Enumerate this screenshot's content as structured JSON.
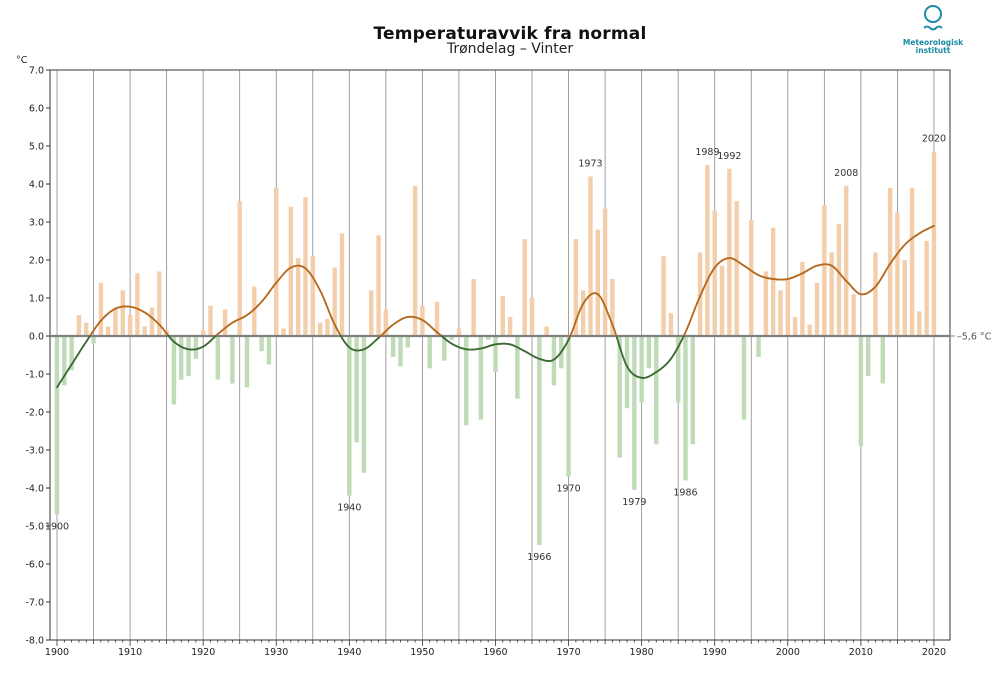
{
  "logo": {
    "text": "Meteorologisk\ninstitutt"
  },
  "chart_data": {
    "type": "bar",
    "title": "Temperaturavvik fra normal",
    "subtitle": "Trøndelag – Vinter",
    "ylabel": "°C",
    "ylim": [
      -8,
      7
    ],
    "yticks": [
      7,
      6,
      5,
      4,
      3,
      2,
      1,
      0,
      -1,
      -2,
      -3,
      -4,
      -5,
      -6,
      -7,
      -8
    ],
    "ytick_labels": [
      "7.0",
      "6.0",
      "5.0",
      "4.0",
      "3.0",
      "2.0",
      "1.0",
      "0.0",
      "-1.0",
      "-2.0",
      "-3.0",
      "-4.0",
      "-5.0",
      "-6.0",
      "-7.0",
      "-8.0"
    ],
    "xlim": [
      1900,
      2020
    ],
    "xticks": [
      1900,
      1910,
      1920,
      1930,
      1940,
      1950,
      1960,
      1970,
      1980,
      1990,
      2000,
      2010,
      2020
    ],
    "xtick_labels": [
      "1900",
      "1910",
      "1920",
      "1930",
      "1940",
      "1950",
      "1960",
      "1970",
      "1980",
      "1990",
      "2000",
      "2010",
      "2020"
    ],
    "normal_label": "–5,6 °C",
    "colors": {
      "positive": "#f4ceab",
      "negative": "#bfdbb8",
      "trend_positive": "#b46a1e",
      "trend_negative": "#3c6a34",
      "zero_line": "#808080",
      "grid": "#8a8a8a"
    },
    "years": [
      1900,
      1901,
      1902,
      1903,
      1904,
      1905,
      1906,
      1907,
      1908,
      1909,
      1910,
      1911,
      1912,
      1913,
      1914,
      1915,
      1916,
      1917,
      1918,
      1919,
      1920,
      1921,
      1922,
      1923,
      1924,
      1925,
      1926,
      1927,
      1928,
      1929,
      1930,
      1931,
      1932,
      1933,
      1934,
      1935,
      1936,
      1937,
      1938,
      1939,
      1940,
      1941,
      1942,
      1943,
      1944,
      1945,
      1946,
      1947,
      1948,
      1949,
      1950,
      1951,
      1952,
      1953,
      1954,
      1955,
      1956,
      1957,
      1958,
      1959,
      1960,
      1961,
      1962,
      1963,
      1964,
      1965,
      1966,
      1967,
      1968,
      1969,
      1970,
      1971,
      1972,
      1973,
      1974,
      1975,
      1976,
      1977,
      1978,
      1979,
      1980,
      1981,
      1982,
      1983,
      1984,
      1985,
      1986,
      1987,
      1988,
      1989,
      1990,
      1991,
      1992,
      1993,
      1994,
      1995,
      1996,
      1997,
      1998,
      1999,
      2000,
      2001,
      2002,
      2003,
      2004,
      2005,
      2006,
      2007,
      2008,
      2009,
      2010,
      2011,
      2012,
      2013,
      2014,
      2015,
      2016,
      2017,
      2018,
      2019,
      2020
    ],
    "values": [
      -4.7,
      -1.3,
      -0.9,
      0.55,
      0.35,
      -0.2,
      1.4,
      0.25,
      0.75,
      1.2,
      0.55,
      1.65,
      0.25,
      0.75,
      1.7,
      0.15,
      -1.8,
      -1.15,
      -1.05,
      -0.6,
      0.15,
      0.8,
      -1.15,
      0.7,
      -1.25,
      3.55,
      -1.35,
      1.3,
      -0.4,
      -0.75,
      3.9,
      0.2,
      3.4,
      2.05,
      3.65,
      2.1,
      0.35,
      0.45,
      1.8,
      2.7,
      -4.2,
      -2.8,
      -3.6,
      1.2,
      2.65,
      0.7,
      -0.55,
      -0.8,
      -0.3,
      3.95,
      0.8,
      -0.85,
      0.9,
      -0.65,
      -0.1,
      0.2,
      -2.35,
      1.5,
      -2.2,
      -0.1,
      -0.95,
      1.05,
      0.5,
      -1.65,
      2.55,
      1.0,
      -5.5,
      0.25,
      -1.3,
      -0.85,
      -3.7,
      2.55,
      1.2,
      4.2,
      2.8,
      3.35,
      1.5,
      -3.2,
      -1.9,
      -4.05,
      -1.75,
      -0.85,
      -2.85,
      2.1,
      0.6,
      -1.75,
      -3.8,
      -2.85,
      2.2,
      4.5,
      3.3,
      1.85,
      4.4,
      3.55,
      -2.2,
      3.05,
      -0.55,
      1.7,
      2.85,
      1.2,
      1.5,
      0.5,
      1.95,
      0.3,
      1.4,
      3.45,
      2.2,
      2.95,
      3.95,
      1.1,
      -2.9,
      -1.05,
      2.2,
      -1.25,
      3.9,
      3.25,
      2.0,
      3.9,
      0.65,
      2.5,
      4.85
    ],
    "trend_years": [
      1900,
      1902,
      1904,
      1906,
      1908,
      1910,
      1912,
      1914,
      1916,
      1918,
      1920,
      1922,
      1924,
      1926,
      1928,
      1930,
      1932,
      1934,
      1936,
      1938,
      1940,
      1942,
      1944,
      1946,
      1948,
      1950,
      1952,
      1954,
      1956,
      1958,
      1960,
      1962,
      1964,
      1966,
      1968,
      1970,
      1972,
      1974,
      1976,
      1978,
      1980,
      1982,
      1984,
      1986,
      1988,
      1990,
      1992,
      1994,
      1996,
      1998,
      2000,
      2002,
      2004,
      2006,
      2008,
      2010,
      2012,
      2014,
      2016,
      2018,
      2020
    ],
    "trend_values": [
      -1.35,
      -0.75,
      -0.15,
      0.4,
      0.72,
      0.77,
      0.62,
      0.3,
      -0.15,
      -0.35,
      -0.28,
      0.05,
      0.35,
      0.55,
      0.9,
      1.4,
      1.8,
      1.78,
      1.2,
      0.3,
      -0.3,
      -0.35,
      -0.05,
      0.3,
      0.5,
      0.42,
      0.1,
      -0.2,
      -0.35,
      -0.33,
      -0.22,
      -0.22,
      -0.4,
      -0.6,
      -0.62,
      -0.1,
      0.85,
      1.1,
      0.3,
      -0.8,
      -1.1,
      -0.95,
      -0.6,
      0.1,
      1.05,
      1.8,
      2.05,
      1.85,
      1.6,
      1.5,
      1.5,
      1.65,
      1.85,
      1.85,
      1.45,
      1.1,
      1.3,
      1.9,
      2.4,
      2.7,
      2.9
    ],
    "annotations": [
      {
        "year": 1900,
        "text": "1900"
      },
      {
        "year": 1940,
        "text": "1940"
      },
      {
        "year": 1966,
        "text": "1966"
      },
      {
        "year": 1970,
        "text": "1970"
      },
      {
        "year": 1973,
        "text": "1973"
      },
      {
        "year": 1979,
        "text": "1979"
      },
      {
        "year": 1986,
        "text": "1986"
      },
      {
        "year": 1989,
        "text": "1989"
      },
      {
        "year": 1992,
        "text": "1992"
      },
      {
        "year": 2008,
        "text": "2008"
      },
      {
        "year": 2020,
        "text": "2020"
      }
    ]
  }
}
